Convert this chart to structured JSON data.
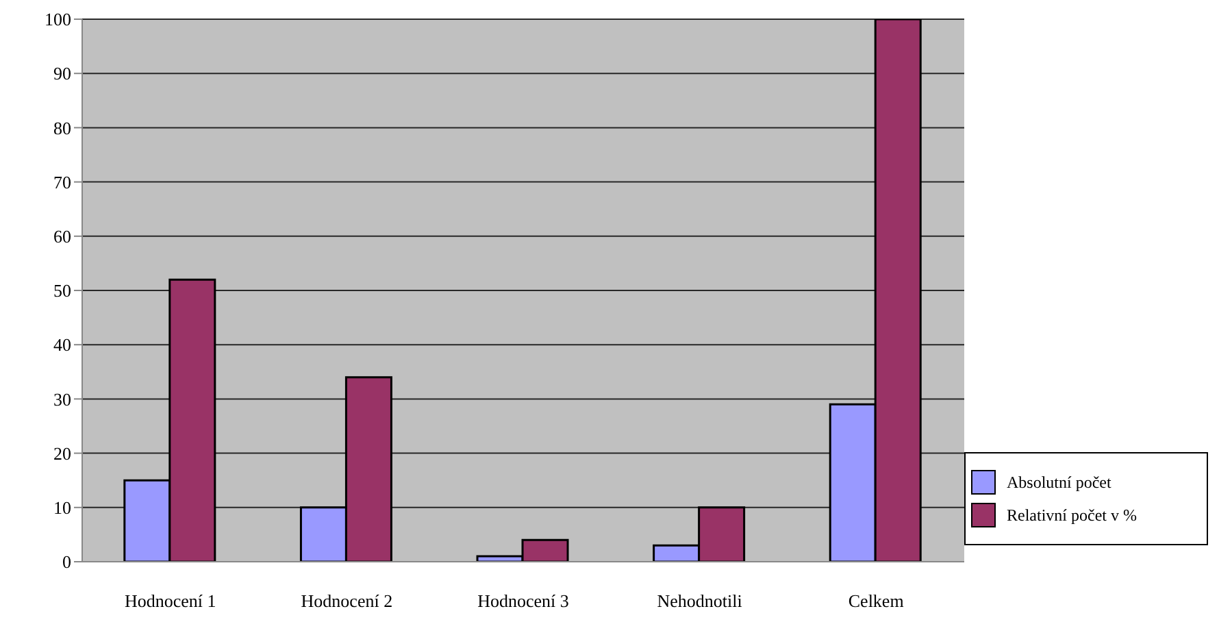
{
  "chart_data": {
    "type": "bar",
    "categories": [
      "Hodnocení 1",
      "Hodnocení 2",
      "Hodnocení 3",
      "Nehodnotili",
      "Celkem"
    ],
    "series": [
      {
        "name": "Absolutní počet",
        "color": "#9999ff",
        "values": [
          15,
          10,
          1,
          3,
          29
        ]
      },
      {
        "name": "Relativní počet v %",
        "color": "#993366",
        "values": [
          52,
          34,
          4,
          10,
          100
        ]
      }
    ],
    "ylim": [
      0,
      100
    ],
    "yticks": [
      0,
      10,
      20,
      30,
      40,
      50,
      60,
      70,
      80,
      90,
      100
    ],
    "grid": "y",
    "legend": "right"
  }
}
